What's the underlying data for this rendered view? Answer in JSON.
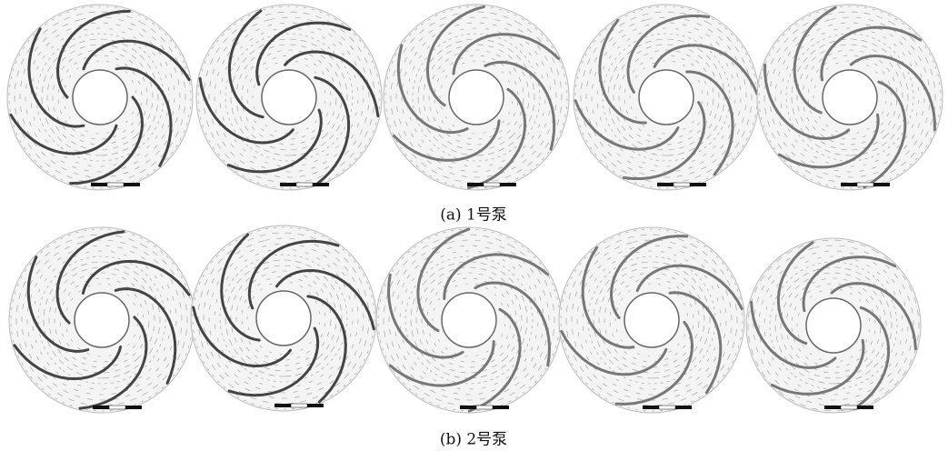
{
  "captions": {
    "a": "(a) 1号泵",
    "b": "(b) 2号泵"
  }
}
